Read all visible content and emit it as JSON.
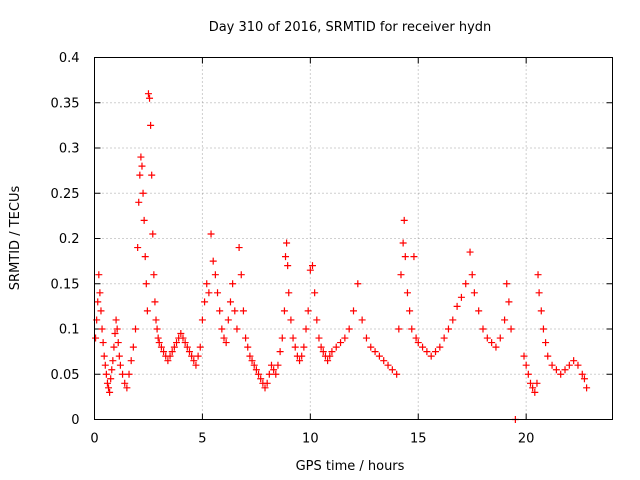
{
  "chart_data": {
    "type": "scatter",
    "title": "Day 310 of 2016, SRMTID for receiver hydn",
    "xlabel": "GPS time / hours",
    "ylabel": "SRMTID / TECUs",
    "xlim": [
      0,
      24.0
    ],
    "ylim": [
      0,
      0.4
    ],
    "xticks": [
      0,
      5,
      10,
      15,
      20
    ],
    "xtick_labels": [
      "0",
      "5",
      "10",
      "15",
      "20"
    ],
    "yticks": [
      0,
      0.05,
      0.1,
      0.15,
      0.2,
      0.25,
      0.3,
      0.35,
      0.4
    ],
    "ytick_labels": [
      "0",
      "0.05",
      "0.1",
      "0.15",
      "0.2",
      "0.25",
      "0.3",
      "0.35",
      "0.4"
    ],
    "grid": true,
    "marker": "+",
    "color": "#ff0000",
    "series": [
      {
        "name": "SRMTID",
        "points": [
          [
            0.05,
            0.09
          ],
          [
            0.1,
            0.11
          ],
          [
            0.15,
            0.13
          ],
          [
            0.2,
            0.16
          ],
          [
            0.25,
            0.14
          ],
          [
            0.3,
            0.12
          ],
          [
            0.35,
            0.1
          ],
          [
            0.4,
            0.085
          ],
          [
            0.45,
            0.07
          ],
          [
            0.5,
            0.06
          ],
          [
            0.55,
            0.05
          ],
          [
            0.6,
            0.04
          ],
          [
            0.65,
            0.035
          ],
          [
            0.7,
            0.03
          ],
          [
            0.75,
            0.045
          ],
          [
            0.8,
            0.055
          ],
          [
            0.85,
            0.065
          ],
          [
            0.9,
            0.08
          ],
          [
            0.95,
            0.095
          ],
          [
            1.0,
            0.11
          ],
          [
            1.05,
            0.1
          ],
          [
            1.1,
            0.085
          ],
          [
            1.15,
            0.07
          ],
          [
            1.2,
            0.06
          ],
          [
            1.3,
            0.05
          ],
          [
            1.4,
            0.04
          ],
          [
            1.5,
            0.035
          ],
          [
            1.6,
            0.05
          ],
          [
            1.7,
            0.065
          ],
          [
            1.8,
            0.08
          ],
          [
            1.9,
            0.1
          ],
          [
            2.0,
            0.19
          ],
          [
            2.05,
            0.24
          ],
          [
            2.1,
            0.27
          ],
          [
            2.15,
            0.29
          ],
          [
            2.2,
            0.28
          ],
          [
            2.25,
            0.25
          ],
          [
            2.3,
            0.22
          ],
          [
            2.35,
            0.18
          ],
          [
            2.4,
            0.15
          ],
          [
            2.45,
            0.12
          ],
          [
            2.5,
            0.36
          ],
          [
            2.55,
            0.355
          ],
          [
            2.6,
            0.325
          ],
          [
            2.65,
            0.27
          ],
          [
            2.7,
            0.205
          ],
          [
            2.75,
            0.16
          ],
          [
            2.8,
            0.13
          ],
          [
            2.85,
            0.11
          ],
          [
            2.9,
            0.1
          ],
          [
            2.95,
            0.09
          ],
          [
            3.0,
            0.085
          ],
          [
            3.1,
            0.08
          ],
          [
            3.2,
            0.075
          ],
          [
            3.3,
            0.07
          ],
          [
            3.4,
            0.065
          ],
          [
            3.5,
            0.07
          ],
          [
            3.6,
            0.075
          ],
          [
            3.7,
            0.08
          ],
          [
            3.8,
            0.085
          ],
          [
            3.9,
            0.09
          ],
          [
            4.0,
            0.095
          ],
          [
            4.1,
            0.09
          ],
          [
            4.2,
            0.085
          ],
          [
            4.3,
            0.08
          ],
          [
            4.4,
            0.075
          ],
          [
            4.5,
            0.07
          ],
          [
            4.6,
            0.065
          ],
          [
            4.7,
            0.06
          ],
          [
            4.8,
            0.07
          ],
          [
            4.9,
            0.08
          ],
          [
            5.0,
            0.11
          ],
          [
            5.1,
            0.13
          ],
          [
            5.2,
            0.15
          ],
          [
            5.3,
            0.14
          ],
          [
            5.4,
            0.205
          ],
          [
            5.5,
            0.175
          ],
          [
            5.6,
            0.16
          ],
          [
            5.7,
            0.14
          ],
          [
            5.8,
            0.12
          ],
          [
            5.9,
            0.1
          ],
          [
            6.0,
            0.09
          ],
          [
            6.1,
            0.085
          ],
          [
            6.2,
            0.11
          ],
          [
            6.3,
            0.13
          ],
          [
            6.4,
            0.15
          ],
          [
            6.5,
            0.12
          ],
          [
            6.6,
            0.1
          ],
          [
            6.7,
            0.19
          ],
          [
            6.8,
            0.16
          ],
          [
            6.9,
            0.12
          ],
          [
            7.0,
            0.09
          ],
          [
            7.1,
            0.08
          ],
          [
            7.2,
            0.07
          ],
          [
            7.3,
            0.065
          ],
          [
            7.4,
            0.06
          ],
          [
            7.5,
            0.055
          ],
          [
            7.6,
            0.05
          ],
          [
            7.7,
            0.045
          ],
          [
            7.8,
            0.04
          ],
          [
            7.9,
            0.035
          ],
          [
            8.0,
            0.04
          ],
          [
            8.1,
            0.05
          ],
          [
            8.2,
            0.06
          ],
          [
            8.3,
            0.055
          ],
          [
            8.4,
            0.05
          ],
          [
            8.5,
            0.06
          ],
          [
            8.6,
            0.075
          ],
          [
            8.7,
            0.09
          ],
          [
            8.8,
            0.12
          ],
          [
            8.85,
            0.18
          ],
          [
            8.9,
            0.195
          ],
          [
            8.95,
            0.17
          ],
          [
            9.0,
            0.14
          ],
          [
            9.1,
            0.11
          ],
          [
            9.2,
            0.09
          ],
          [
            9.3,
            0.08
          ],
          [
            9.4,
            0.07
          ],
          [
            9.5,
            0.065
          ],
          [
            9.6,
            0.07
          ],
          [
            9.7,
            0.08
          ],
          [
            9.8,
            0.1
          ],
          [
            9.9,
            0.12
          ],
          [
            10.0,
            0.165
          ],
          [
            10.1,
            0.17
          ],
          [
            10.2,
            0.14
          ],
          [
            10.3,
            0.11
          ],
          [
            10.4,
            0.09
          ],
          [
            10.5,
            0.08
          ],
          [
            10.6,
            0.075
          ],
          [
            10.7,
            0.07
          ],
          [
            10.8,
            0.065
          ],
          [
            10.9,
            0.07
          ],
          [
            11.0,
            0.075
          ],
          [
            11.2,
            0.08
          ],
          [
            11.4,
            0.085
          ],
          [
            11.6,
            0.09
          ],
          [
            11.8,
            0.1
          ],
          [
            12.0,
            0.12
          ],
          [
            12.2,
            0.15
          ],
          [
            12.4,
            0.11
          ],
          [
            12.6,
            0.09
          ],
          [
            12.8,
            0.08
          ],
          [
            13.0,
            0.075
          ],
          [
            13.2,
            0.07
          ],
          [
            13.4,
            0.065
          ],
          [
            13.6,
            0.06
          ],
          [
            13.8,
            0.055
          ],
          [
            14.0,
            0.05
          ],
          [
            14.1,
            0.1
          ],
          [
            14.2,
            0.16
          ],
          [
            14.3,
            0.195
          ],
          [
            14.35,
            0.22
          ],
          [
            14.4,
            0.18
          ],
          [
            14.5,
            0.14
          ],
          [
            14.6,
            0.12
          ],
          [
            14.7,
            0.1
          ],
          [
            14.8,
            0.18
          ],
          [
            14.9,
            0.09
          ],
          [
            15.0,
            0.085
          ],
          [
            15.2,
            0.08
          ],
          [
            15.4,
            0.075
          ],
          [
            15.6,
            0.07
          ],
          [
            15.8,
            0.075
          ],
          [
            16.0,
            0.08
          ],
          [
            16.2,
            0.09
          ],
          [
            16.4,
            0.1
          ],
          [
            16.6,
            0.11
          ],
          [
            16.8,
            0.125
          ],
          [
            17.0,
            0.135
          ],
          [
            17.2,
            0.15
          ],
          [
            17.4,
            0.185
          ],
          [
            17.5,
            0.16
          ],
          [
            17.6,
            0.14
          ],
          [
            17.8,
            0.12
          ],
          [
            18.0,
            0.1
          ],
          [
            18.2,
            0.09
          ],
          [
            18.4,
            0.085
          ],
          [
            18.6,
            0.08
          ],
          [
            18.8,
            0.09
          ],
          [
            19.0,
            0.11
          ],
          [
            19.1,
            0.15
          ],
          [
            19.2,
            0.13
          ],
          [
            19.3,
            0.1
          ],
          [
            19.5,
            0.0
          ],
          [
            19.9,
            0.07
          ],
          [
            20.0,
            0.06
          ],
          [
            20.1,
            0.05
          ],
          [
            20.2,
            0.04
          ],
          [
            20.3,
            0.035
          ],
          [
            20.4,
            0.03
          ],
          [
            20.5,
            0.04
          ],
          [
            20.55,
            0.16
          ],
          [
            20.6,
            0.14
          ],
          [
            20.7,
            0.12
          ],
          [
            20.8,
            0.1
          ],
          [
            20.9,
            0.085
          ],
          [
            21.0,
            0.07
          ],
          [
            21.2,
            0.06
          ],
          [
            21.4,
            0.055
          ],
          [
            21.6,
            0.05
          ],
          [
            21.8,
            0.055
          ],
          [
            22.0,
            0.06
          ],
          [
            22.2,
            0.065
          ],
          [
            22.4,
            0.06
          ],
          [
            22.6,
            0.05
          ],
          [
            22.7,
            0.045
          ],
          [
            22.8,
            0.035
          ]
        ]
      }
    ]
  }
}
